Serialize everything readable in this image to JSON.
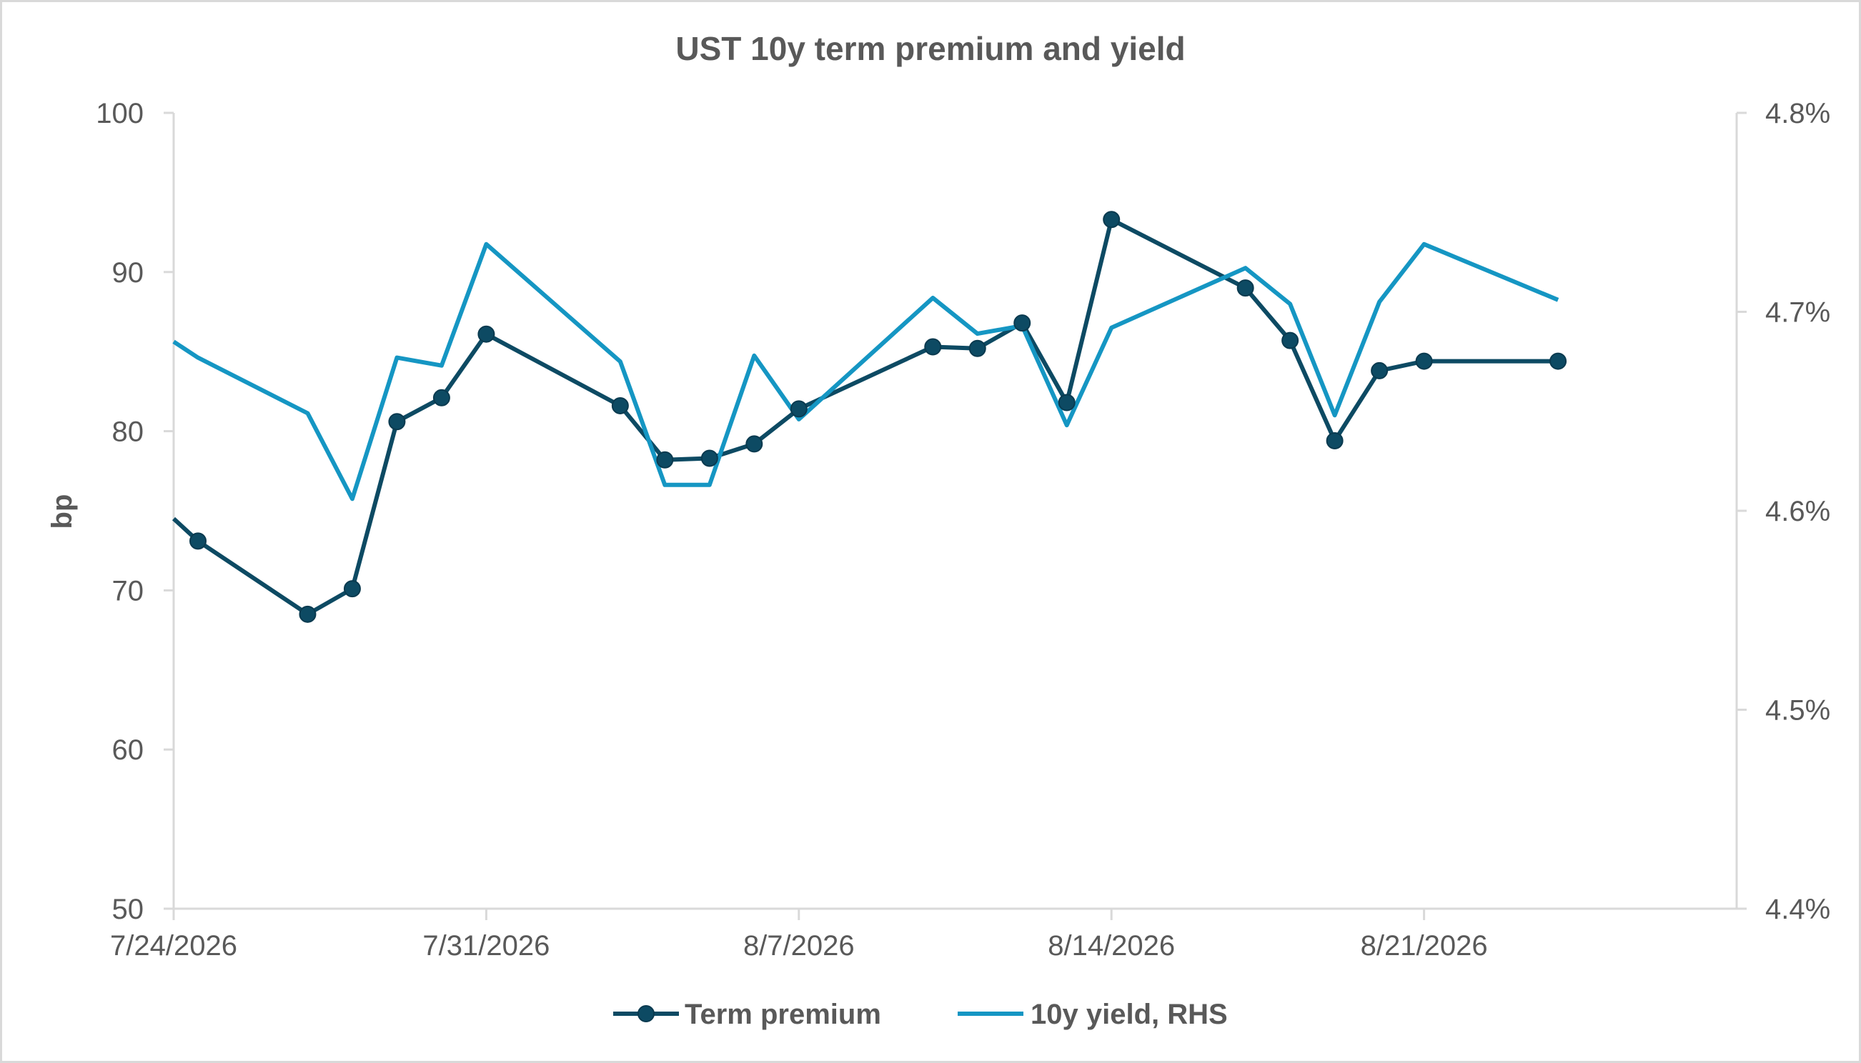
{
  "chart_data": {
    "type": "line",
    "title": "UST 10y term premium and yield",
    "ylabel": "bp",
    "y2label": "",
    "ylim": [
      50,
      100
    ],
    "y2lim": [
      4.4,
      4.8
    ],
    "yticks": [
      "50",
      "60",
      "70",
      "80",
      "90",
      "100"
    ],
    "y2ticks": [
      "4.4%",
      "4.5%",
      "4.6%",
      "4.7%",
      "4.8%"
    ],
    "y2tick_values": [
      4.4,
      4.5,
      4.6,
      4.7,
      4.8
    ],
    "xlim": [
      "2026-07-24",
      "2026-08-28"
    ],
    "xticks": [
      {
        "date": "2026-07-24",
        "label": "7/24/2026"
      },
      {
        "date": "2026-07-31",
        "label": "7/31/2026"
      },
      {
        "date": "2026-08-07",
        "label": "8/7/2026"
      },
      {
        "date": "2026-08-14",
        "label": "8/14/2026"
      },
      {
        "date": "2026-08-21",
        "label": "8/21/2026"
      }
    ],
    "grid": false,
    "legend_position": "bottom",
    "series": [
      {
        "name": "Term premium",
        "axis": "left",
        "color": "#0d4a63",
        "markers": true,
        "x": [
          "2026-07-24",
          "2026-07-24",
          "2026-07-27",
          "2026-07-28",
          "2026-07-29",
          "2026-07-30",
          "2026-07-31",
          "2026-08-03",
          "2026-08-04",
          "2026-08-05",
          "2026-08-06",
          "2026-08-07",
          "2026-08-10",
          "2026-08-11",
          "2026-08-12",
          "2026-08-13",
          "2026-08-14",
          "2026-08-17",
          "2026-08-18",
          "2026-08-19",
          "2026-08-20",
          "2026-08-21",
          "2026-08-24"
        ],
        "marker_from": 1,
        "values": [
          74.5,
          73.1,
          68.5,
          70.1,
          80.6,
          82.1,
          86.1,
          81.6,
          78.2,
          78.3,
          79.2,
          81.4,
          85.3,
          85.2,
          86.8,
          81.8,
          93.3,
          89.0,
          85.7,
          79.4,
          83.8,
          84.4,
          84.4
        ]
      },
      {
        "name": "10y yield, RHS",
        "axis": "right",
        "color": "#1596c3",
        "markers": false,
        "x": [
          "2026-07-24",
          "2026-07-24",
          "2026-07-27",
          "2026-07-28",
          "2026-07-29",
          "2026-07-30",
          "2026-07-31",
          "2026-08-03",
          "2026-08-04",
          "2026-08-05",
          "2026-08-06",
          "2026-08-07",
          "2026-08-10",
          "2026-08-11",
          "2026-08-12",
          "2026-08-13",
          "2026-08-14",
          "2026-08-17",
          "2026-08-18",
          "2026-08-19",
          "2026-08-20",
          "2026-08-21",
          "2026-08-24"
        ],
        "values": [
          4.685,
          4.677,
          4.649,
          4.606,
          4.677,
          4.673,
          4.734,
          4.675,
          4.613,
          4.613,
          4.678,
          4.646,
          4.707,
          4.689,
          4.693,
          4.643,
          4.692,
          4.722,
          4.704,
          4.648,
          4.705,
          4.734,
          4.706
        ]
      }
    ]
  }
}
